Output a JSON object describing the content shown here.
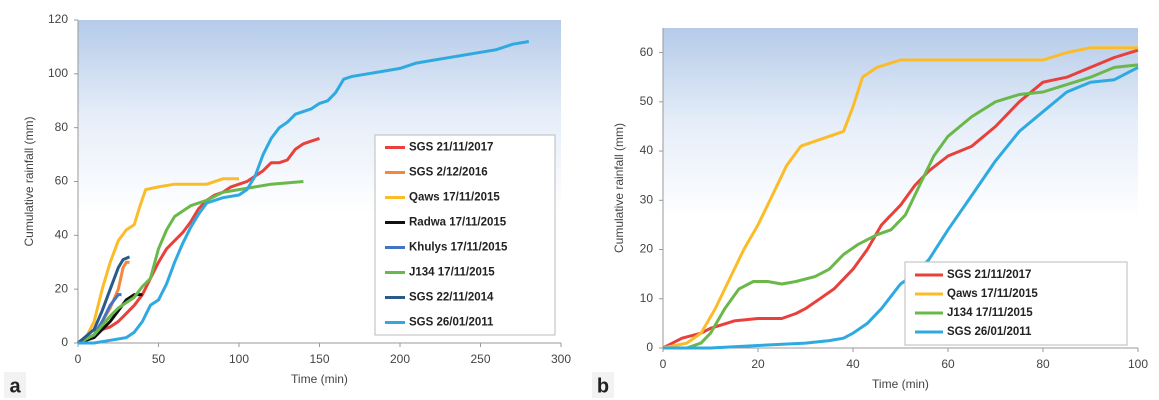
{
  "chart_data": [
    {
      "type": "line",
      "panel_label": "a",
      "x_label": "Time (min)",
      "y_label": "Cumulative rainfall (mm)",
      "xlim": [
        0,
        300
      ],
      "xticks": [
        0,
        50,
        100,
        150,
        200,
        250,
        300
      ],
      "ylim": [
        0,
        120
      ],
      "yticks": [
        0,
        20,
        40,
        60,
        80,
        100,
        120
      ],
      "legend": "center right",
      "series": [
        {
          "name": "SGS 21/11/2017",
          "color": "#e8413c",
          "x": [
            0,
            5,
            10,
            15,
            20,
            25,
            30,
            35,
            40,
            45,
            50,
            55,
            60,
            65,
            70,
            75,
            80,
            85,
            90,
            95,
            100,
            105,
            110,
            115,
            120,
            125,
            130,
            135,
            140,
            145,
            150
          ],
          "values": [
            0,
            1,
            3,
            5,
            6,
            8,
            11,
            14,
            18,
            24,
            30,
            35,
            38,
            41,
            45,
            50,
            53,
            55,
            56,
            58,
            59,
            60,
            62,
            64,
            67,
            67,
            68,
            72,
            74,
            75,
            76
          ]
        },
        {
          "name": "SGS 2/12/2016",
          "color": "#f4873b",
          "x": [
            0,
            5,
            10,
            15,
            20,
            25,
            28,
            30,
            32
          ],
          "values": [
            0,
            1,
            3,
            8,
            13,
            20,
            28,
            30,
            30
          ]
        },
        {
          "name": "Qaws 17/11/2015",
          "color": "#fbbc2a",
          "x": [
            0,
            5,
            10,
            15,
            20,
            25,
            30,
            35,
            38,
            42,
            50,
            60,
            80,
            90,
            100
          ],
          "values": [
            0,
            2,
            8,
            20,
            30,
            38,
            42,
            44,
            50,
            57,
            58,
            59,
            59,
            61,
            61
          ]
        },
        {
          "name": "Radwa 17/11/2015",
          "color": "#111111",
          "x": [
            0,
            10,
            15,
            20,
            25,
            30,
            35,
            40
          ],
          "values": [
            0,
            2,
            5,
            8,
            12,
            16,
            18,
            18
          ]
        },
        {
          "name": "Khulys 17/11/2015",
          "color": "#4472c4",
          "x": [
            0,
            10,
            15,
            20,
            25,
            27
          ],
          "values": [
            0,
            3,
            8,
            14,
            18,
            18
          ]
        },
        {
          "name": "J134 17/11/2015",
          "color": "#6ab84a",
          "x": [
            0,
            10,
            20,
            25,
            30,
            35,
            40,
            45,
            50,
            55,
            60,
            70,
            80,
            90,
            100,
            110,
            120,
            140
          ],
          "values": [
            0,
            3,
            10,
            13,
            15,
            17,
            21,
            24,
            35,
            42,
            47,
            51,
            53,
            56,
            57,
            58,
            59,
            60
          ]
        },
        {
          "name": "SGS 22/11/2014",
          "color": "#2a5a8a",
          "x": [
            0,
            10,
            15,
            20,
            25,
            28,
            32
          ],
          "values": [
            0,
            5,
            12,
            20,
            28,
            31,
            32
          ]
        },
        {
          "name": "SGS 26/01/2011",
          "color": "#2eaae1",
          "x": [
            0,
            10,
            20,
            30,
            35,
            40,
            45,
            50,
            55,
            60,
            65,
            70,
            75,
            80,
            90,
            100,
            105,
            110,
            115,
            120,
            125,
            130,
            135,
            145,
            150,
            155,
            160,
            165,
            170,
            180,
            190,
            200,
            210,
            220,
            230,
            240,
            250,
            260,
            270,
            280
          ],
          "values": [
            0,
            0,
            1,
            2,
            4,
            8,
            14,
            16,
            22,
            30,
            37,
            43,
            48,
            52,
            54,
            55,
            57,
            62,
            70,
            76,
            80,
            82,
            85,
            87,
            89,
            90,
            93,
            98,
            99,
            100,
            101,
            102,
            104,
            105,
            106,
            107,
            108,
            109,
            111,
            112
          ]
        }
      ]
    },
    {
      "type": "line",
      "panel_label": "b",
      "x_label": "Time (min)",
      "y_label": "Cumulative rainfall (mm)",
      "xlim": [
        0,
        100
      ],
      "xticks": [
        0,
        20,
        40,
        60,
        80,
        100
      ],
      "ylim": [
        0,
        65
      ],
      "yticks": [
        0,
        10,
        20,
        30,
        40,
        50,
        60
      ],
      "legend": "lower right",
      "series": [
        {
          "name": "SGS 21/11/2017",
          "color": "#e8413c",
          "x": [
            0,
            2,
            4,
            6,
            8,
            10,
            15,
            20,
            25,
            28,
            30,
            33,
            36,
            40,
            43,
            46,
            50,
            53,
            56,
            60,
            65,
            70,
            75,
            80,
            85,
            90,
            95,
            100
          ],
          "values": [
            0,
            1,
            2,
            2.5,
            3,
            4,
            5.5,
            6,
            6,
            7,
            8,
            10,
            12,
            16,
            20,
            25,
            29,
            33,
            36,
            39,
            41,
            45,
            50,
            54,
            55,
            57,
            59,
            60.5
          ]
        },
        {
          "name": "Qaws 17/11/2015",
          "color": "#fbbc2a",
          "x": [
            0,
            5,
            8,
            11,
            14,
            17,
            20,
            23,
            26,
            29,
            32,
            35,
            38,
            40,
            42,
            45,
            50,
            60,
            80,
            85,
            90,
            100
          ],
          "values": [
            0,
            1,
            3,
            8,
            14,
            20,
            25,
            31,
            37,
            41,
            42,
            43,
            44,
            49,
            55,
            57,
            58.5,
            58.5,
            58.5,
            60,
            61,
            61
          ]
        },
        {
          "name": "J134 17/11/2015",
          "color": "#6ab84a",
          "x": [
            0,
            5,
            8,
            10,
            13,
            16,
            19,
            22,
            25,
            28,
            32,
            35,
            38,
            41,
            45,
            48,
            51,
            54,
            57,
            60,
            65,
            70,
            75,
            80,
            85,
            90,
            95,
            100
          ],
          "values": [
            0,
            0,
            1,
            3,
            8,
            12,
            13.5,
            13.5,
            13,
            13.5,
            14.5,
            16,
            19,
            21,
            23,
            24,
            27,
            33,
            39,
            43,
            47,
            50,
            51.5,
            52,
            53.5,
            55,
            57,
            57.5
          ]
        },
        {
          "name": "SGS 26/01/2011",
          "color": "#2eaae1",
          "x": [
            0,
            10,
            20,
            30,
            35,
            38,
            40,
            43,
            46,
            50,
            53,
            56,
            60,
            65,
            70,
            75,
            80,
            85,
            90,
            95,
            100
          ],
          "values": [
            0,
            0,
            0.5,
            1,
            1.5,
            2,
            3,
            5,
            8,
            13,
            15,
            18,
            24,
            31,
            38,
            44,
            48,
            52,
            54,
            54.5,
            57
          ]
        }
      ]
    }
  ]
}
